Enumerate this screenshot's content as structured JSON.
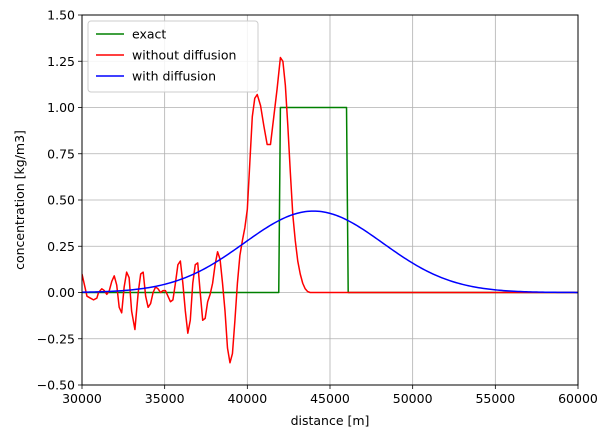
{
  "chart_data": {
    "type": "line",
    "title": "",
    "xlabel": "distance [m]",
    "ylabel": "concentration [kg/m3]",
    "xlim": [
      30000,
      60000
    ],
    "ylim": [
      -0.5,
      1.5
    ],
    "grid": true,
    "legend_position": "top-left",
    "x_ticks": [
      30000,
      35000,
      40000,
      45000,
      50000,
      55000,
      60000
    ],
    "x_tick_labels": [
      "30000",
      "35000",
      "40000",
      "45000",
      "50000",
      "55000",
      "60000"
    ],
    "y_ticks": [
      -0.5,
      -0.25,
      0.0,
      0.25,
      0.5,
      0.75,
      1.0,
      1.25,
      1.5
    ],
    "y_tick_labels": [
      "−0.50",
      "−0.25",
      "0.00",
      "0.25",
      "0.50",
      "0.75",
      "1.00",
      "1.25",
      "1.50"
    ],
    "series": [
      {
        "name": "exact",
        "color": "#008000",
        "x": [
          30000,
          41900,
          42000,
          46000,
          46100,
          60000
        ],
        "y": [
          0,
          0,
          1,
          1,
          0,
          0
        ]
      },
      {
        "name": "without diffusion",
        "color": "#ff0000",
        "x": [
          30000,
          30150,
          30300,
          30500,
          30700,
          30900,
          31000,
          31200,
          31350,
          31500,
          31650,
          31800,
          31950,
          32100,
          32250,
          32400,
          32550,
          32700,
          32850,
          33000,
          33200,
          33400,
          33550,
          33700,
          33850,
          34000,
          34150,
          34300,
          34450,
          34600,
          34750,
          34900,
          35050,
          35200,
          35350,
          35500,
          35650,
          35800,
          35950,
          36100,
          36250,
          36400,
          36550,
          36700,
          36850,
          37000,
          37150,
          37300,
          37450,
          37600,
          37750,
          37900,
          38050,
          38200,
          38350,
          38500,
          38650,
          38800,
          38950,
          39100,
          39250,
          39400,
          39550,
          39700,
          39850,
          40000,
          40150,
          40300,
          40450,
          40600,
          40800,
          41000,
          41200,
          41400,
          41600,
          41800,
          42000,
          42150,
          42300,
          42450,
          42600,
          42750,
          42900,
          43050,
          43200,
          43350,
          43500,
          43650,
          43800,
          43950,
          44100,
          44250,
          44400,
          44550,
          44700,
          44850,
          45000,
          45150,
          45300,
          45450,
          45600,
          45750,
          45900,
          46100,
          46300,
          46500,
          46700,
          46900,
          47100,
          47400,
          47700,
          48000,
          48500,
          49000,
          50000,
          52000,
          55000,
          60000
        ],
        "y": [
          0.1,
          0.04,
          -0.02,
          -0.03,
          -0.04,
          -0.03,
          0.0,
          0.02,
          0.01,
          -0.01,
          0.01,
          0.06,
          0.09,
          0.04,
          -0.08,
          -0.11,
          0.03,
          0.11,
          0.08,
          -0.1,
          -0.2,
          0.0,
          0.1,
          0.11,
          -0.02,
          -0.08,
          -0.06,
          0.0,
          0.03,
          0.02,
          0.0,
          0.01,
          0.01,
          -0.02,
          -0.05,
          -0.04,
          0.05,
          0.15,
          0.17,
          0.05,
          -0.1,
          -0.22,
          -0.15,
          0.05,
          0.15,
          0.16,
          0.0,
          -0.15,
          -0.14,
          -0.05,
          -0.01,
          0.05,
          0.15,
          0.22,
          0.18,
          0.05,
          -0.1,
          -0.3,
          -0.38,
          -0.33,
          -0.15,
          0.05,
          0.2,
          0.28,
          0.35,
          0.45,
          0.7,
          0.95,
          1.05,
          1.07,
          1.01,
          0.9,
          0.8,
          0.8,
          0.95,
          1.1,
          1.27,
          1.25,
          1.12,
          0.9,
          0.65,
          0.42,
          0.28,
          0.17,
          0.1,
          0.05,
          0.02,
          0.005,
          0.0,
          0.0,
          0.0,
          0.0,
          0.0,
          0.0,
          0.0,
          0.0,
          0.0,
          0.0,
          0.0,
          0.0,
          0.0,
          0.0,
          0.0,
          0.0,
          0.0,
          0.0,
          0.0,
          0.0,
          0.0,
          0.0,
          0.0,
          0.0,
          0.0,
          0.0,
          0.0,
          0.0,
          0.0,
          0.0
        ]
      },
      {
        "name": "with diffusion",
        "color": "#0000ff",
        "gaussian": {
          "amplitude": 0.44,
          "center": 44000,
          "sigma": 4200
        },
        "x_range": [
          30000,
          60000
        ],
        "samples": 241
      }
    ]
  }
}
